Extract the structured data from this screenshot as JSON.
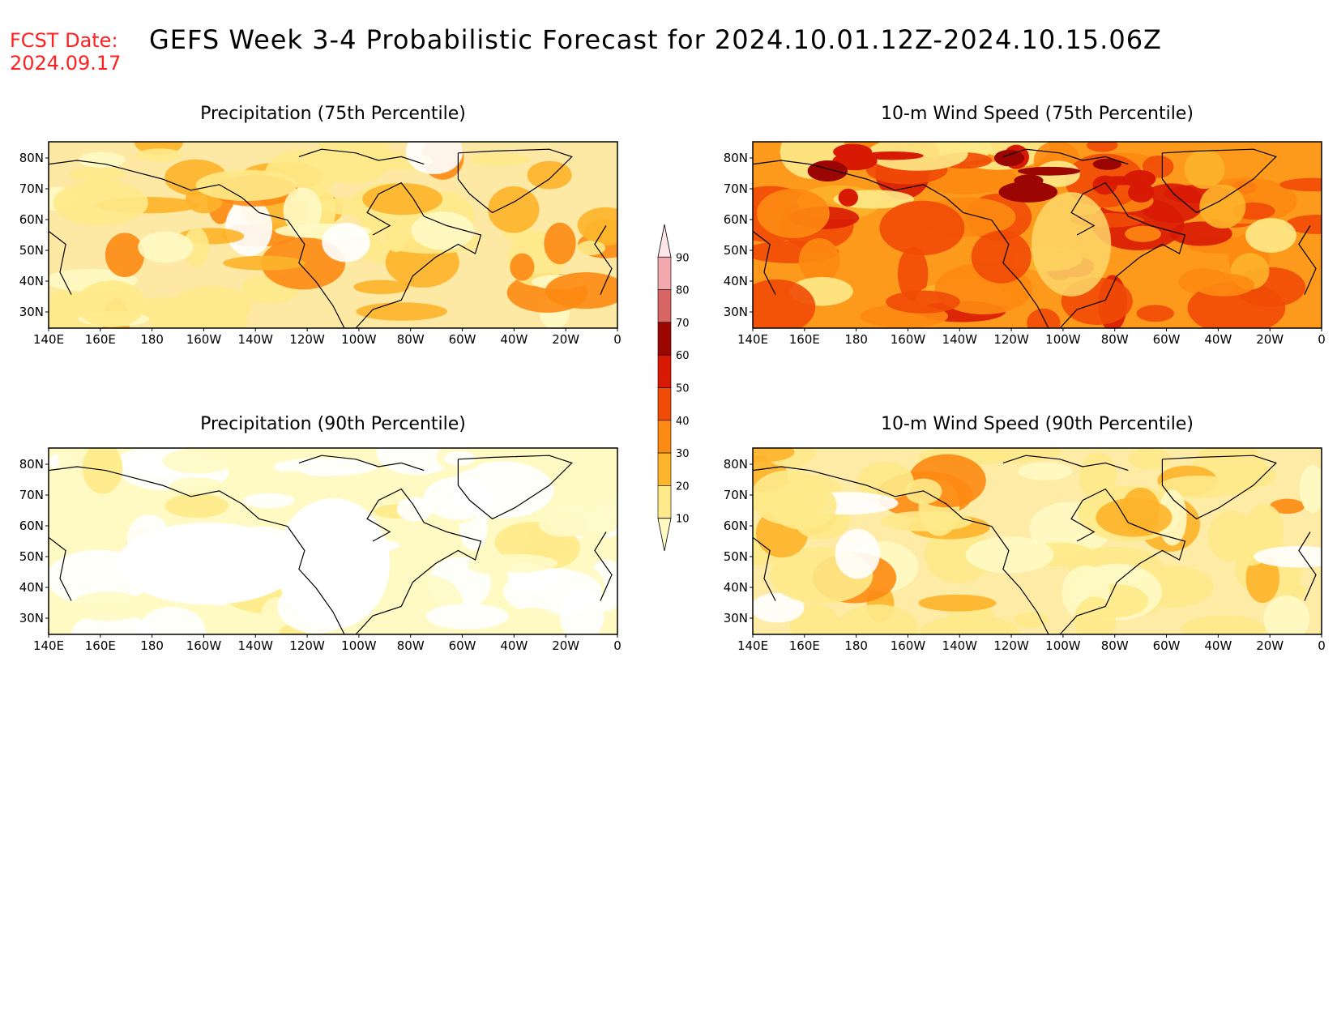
{
  "header": {
    "fcst_label": "FCST Date:",
    "fcst_date": "2024.09.17",
    "title": "GEFS Week 3-4 Probabilistic Forecast for 2024.10.01.12Z-2024.10.15.06Z"
  },
  "axes": {
    "lon_labels": [
      "140E",
      "160E",
      "180",
      "160W",
      "140W",
      "120W",
      "100W",
      "80W",
      "60W",
      "40W",
      "20W",
      "0"
    ],
    "lat_labels": [
      "80N",
      "70N",
      "60N",
      "50N",
      "40N",
      "30N"
    ]
  },
  "colorbar": {
    "levels": [
      10,
      20,
      30,
      40,
      50,
      60,
      70,
      80,
      90
    ],
    "level_labels": [
      "10",
      "20",
      "30",
      "40",
      "50",
      "60",
      "70",
      "80",
      "90"
    ],
    "colors": [
      "#fffac4",
      "#feea8a",
      "#fdb42a",
      "#fd8a12",
      "#f14b07",
      "#d81a04",
      "#9b0603",
      "#d86464",
      "#f2a8ac",
      "#fde6ea"
    ]
  },
  "panels": [
    {
      "id": "precip-75",
      "title": "Precipitation (75th Percentile)",
      "base": "#fde8a4",
      "pattern": "moderate"
    },
    {
      "id": "wind-75",
      "title": "10-m Wind Speed (75th Percentile)",
      "base": "#fd9a1c",
      "pattern": "high"
    },
    {
      "id": "precip-90",
      "title": "Precipitation (90th Percentile)",
      "base": "#fffac4",
      "pattern": "low"
    },
    {
      "id": "wind-90",
      "title": "10-m Wind Speed (90th Percentile)",
      "base": "#feeca6",
      "pattern": "low-moderate"
    }
  ]
}
